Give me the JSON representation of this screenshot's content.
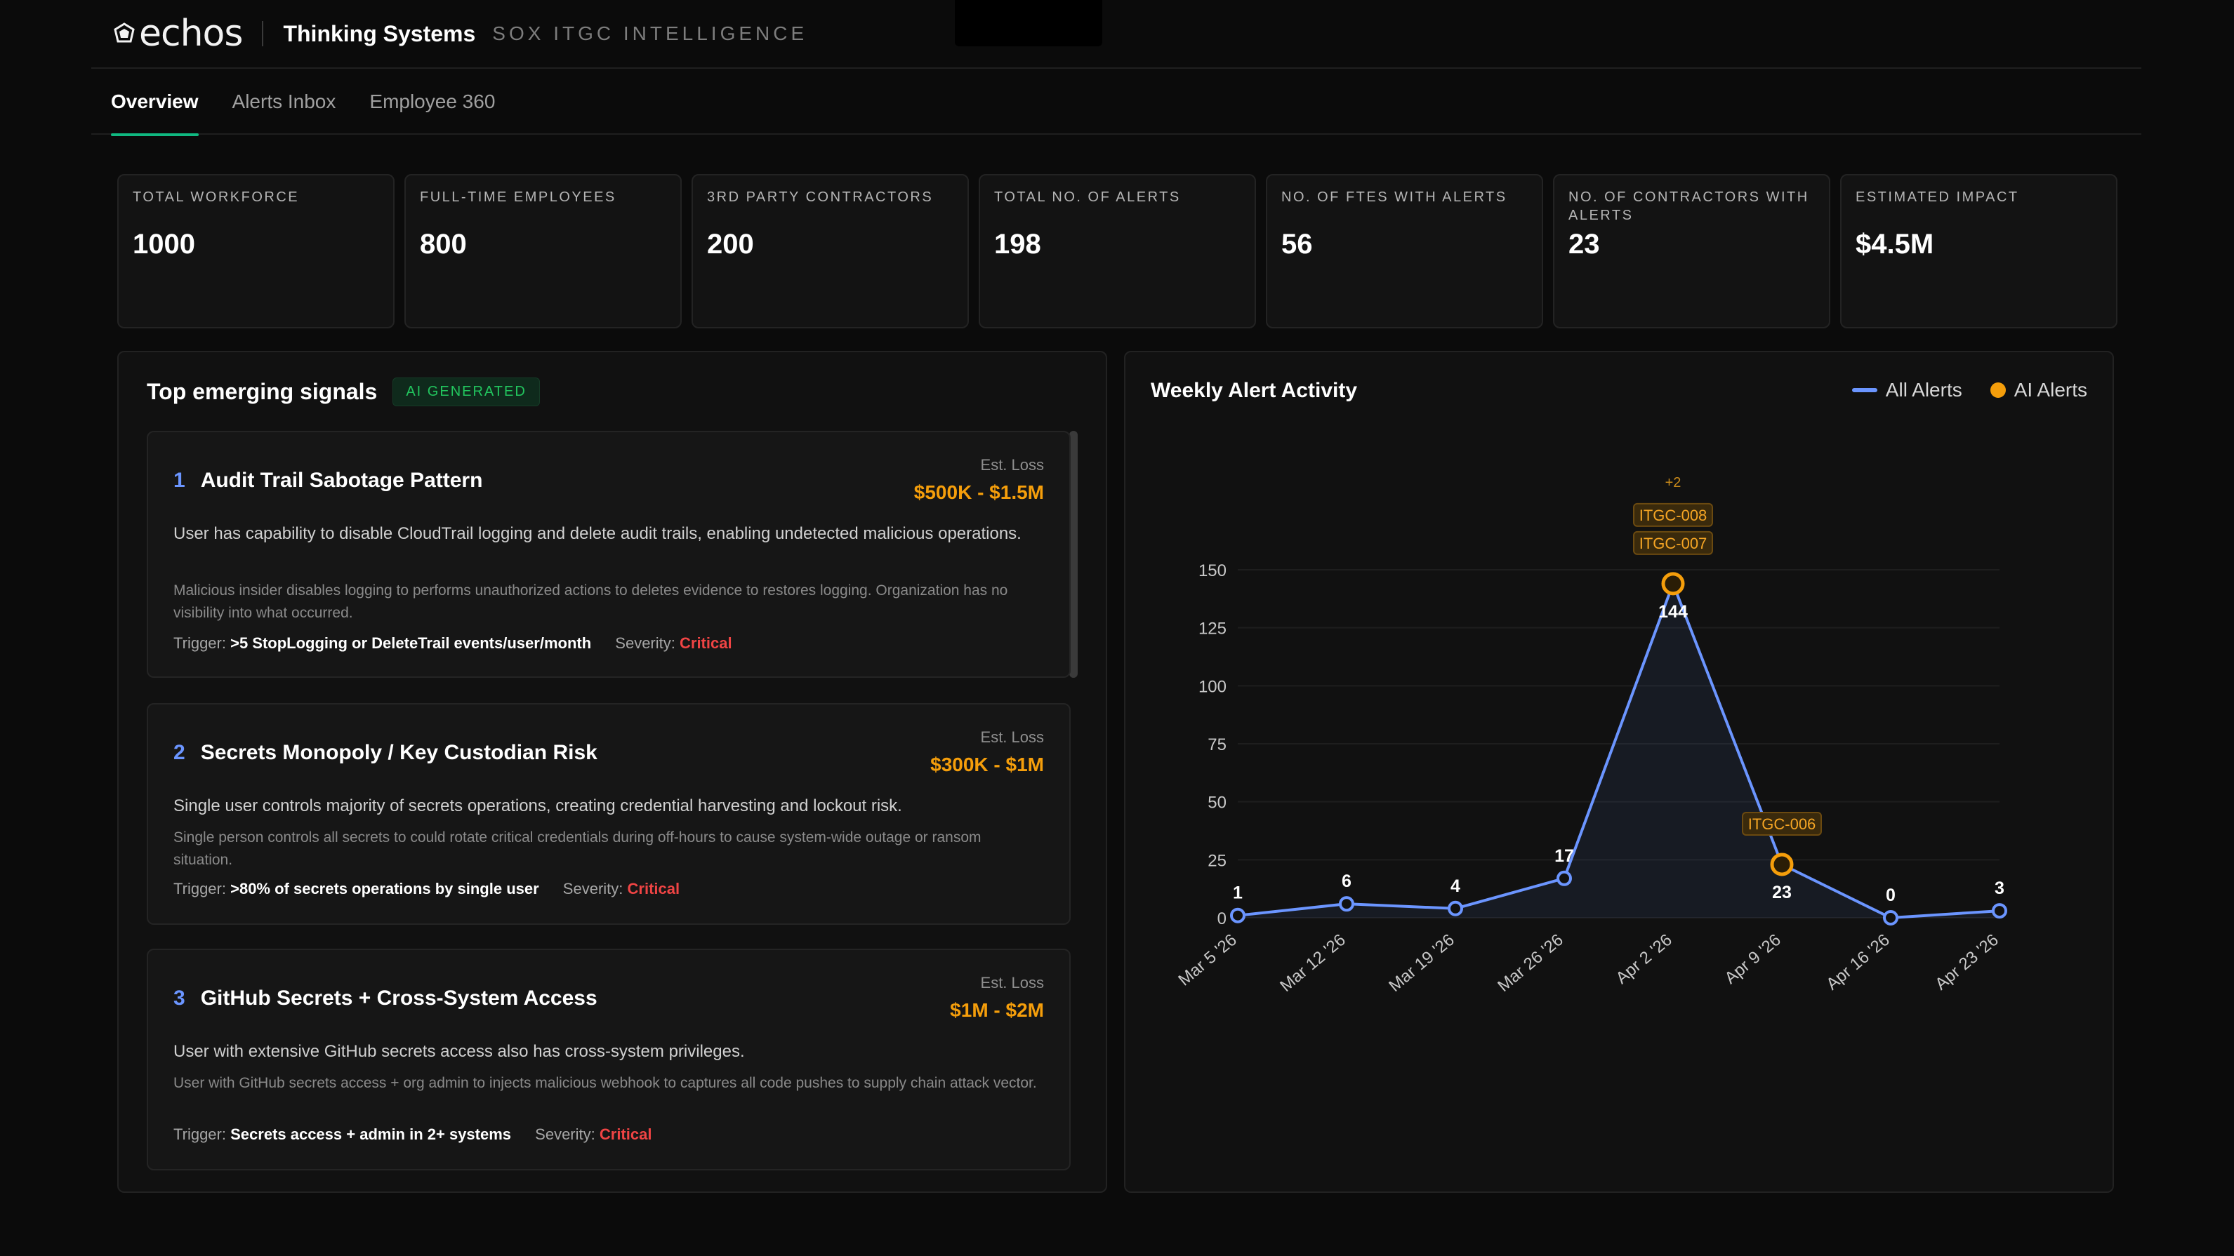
{
  "header": {
    "logo_text": "echos",
    "title": "Thinking Systems",
    "subtitle": "SOX ITGC INTELLIGENCE"
  },
  "tabs": [
    {
      "label": "Overview",
      "active": true
    },
    {
      "label": "Alerts Inbox",
      "active": false
    },
    {
      "label": "Employee 360",
      "active": false
    }
  ],
  "kpis": [
    {
      "label": "TOTAL WORKFORCE",
      "value": "1000"
    },
    {
      "label": "FULL-TIME EMPLOYEES",
      "value": "800"
    },
    {
      "label": "3RD PARTY CONTRACTORS",
      "value": "200"
    },
    {
      "label": "TOTAL NO. OF ALERTS",
      "value": "198"
    },
    {
      "label": "NO. OF FTES WITH ALERTS",
      "value": "56"
    },
    {
      "label": "NO. OF CONTRACTORS WITH ALERTS",
      "value": "23"
    },
    {
      "label": "ESTIMATED IMPACT",
      "value": "$4.5M"
    }
  ],
  "signals": {
    "title": "Top emerging signals",
    "badge": "AI GENERATED",
    "loss_label": "Est. Loss",
    "trigger_label": "Trigger:",
    "severity_label": "Severity:",
    "items": [
      {
        "num": "1",
        "title": "Audit Trail Sabotage Pattern",
        "loss": "$500K - $1.5M",
        "description": "User has capability to disable CloudTrail logging and delete audit trails, enabling undetected malicious operations.",
        "detail": "Malicious insider disables logging to performs unauthorized actions to deletes evidence to restores logging. Organization has no visibility into what occurred.",
        "trigger": ">5 StopLogging or DeleteTrail events/user/month",
        "severity": "Critical"
      },
      {
        "num": "2",
        "title": "Secrets Monopoly / Key Custodian Risk",
        "loss": "$300K - $1M",
        "description": "Single user controls majority of secrets operations, creating credential harvesting and lockout risk.",
        "detail": "Single person controls all secrets to could rotate critical credentials during off-hours to cause system-wide outage or ransom situation.",
        "trigger": ">80% of secrets operations by single user",
        "severity": "Critical"
      },
      {
        "num": "3",
        "title": "GitHub Secrets + Cross-System Access",
        "loss": "$1M - $2M",
        "description": "User with extensive GitHub secrets access also has cross-system privileges.",
        "detail": "User with GitHub secrets access + org admin to injects malicious webhook to captures all code pushes to supply chain attack vector.",
        "trigger": "Secrets access + admin in 2+ systems",
        "severity": "Critical"
      }
    ]
  },
  "chart": {
    "title": "Weekly Alert Activity",
    "legend_all": "All Alerts",
    "legend_ai": "AI Alerts"
  },
  "chart_data": {
    "type": "line",
    "title": "Weekly Alert Activity",
    "x": [
      "Mar 5 '26",
      "Mar 12 '26",
      "Mar 19 '26",
      "Mar 26 '26",
      "Apr 2 '26",
      "Apr 9 '26",
      "Apr 16 '26",
      "Apr 23 '26"
    ],
    "series": [
      {
        "name": "All Alerts",
        "values": [
          1,
          6,
          4,
          17,
          144,
          23,
          0,
          3
        ],
        "color": "#6b95ff"
      }
    ],
    "ai_alerts": [
      {
        "x": "Apr 2 '26",
        "labels": [
          "ITGC-008",
          "ITGC-007"
        ],
        "more": "+2"
      },
      {
        "x": "Apr 9 '26",
        "labels": [
          "ITGC-006"
        ],
        "more": ""
      }
    ],
    "y_ticks": [
      0,
      25,
      50,
      75,
      100,
      125,
      150
    ],
    "ylim": [
      0,
      150
    ],
    "grid": true,
    "legend_placement": "top-right"
  },
  "colors": {
    "accent_green": "#10b981",
    "primary_blue": "#6b95ff",
    "ai_orange": "#f59e0b",
    "critical_red": "#ef4444"
  }
}
